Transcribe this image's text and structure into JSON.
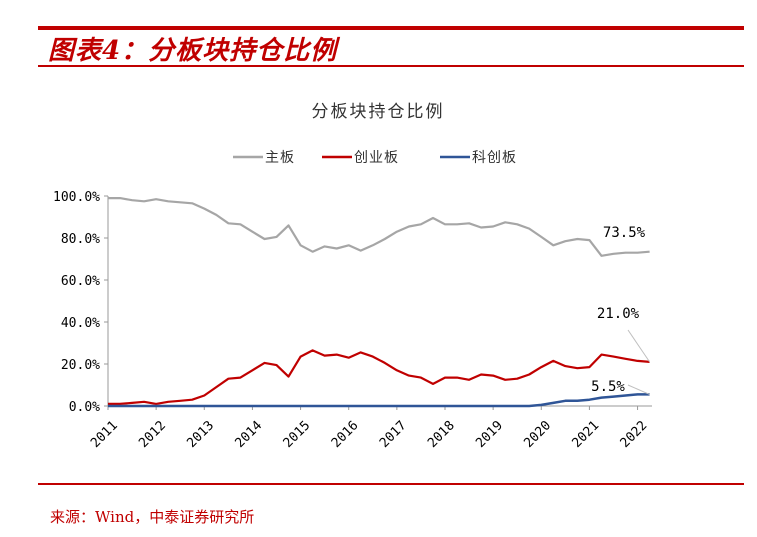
{
  "figure_title": "图表4：分板块持仓比例",
  "source": "来源：Wind，中泰证券研究所",
  "colors": {
    "accent": "#c00000",
    "main_board": "#a6a6a6",
    "chinext": "#c00000",
    "star": "#2f5597"
  },
  "chart_data": {
    "type": "line",
    "title": "分板块持仓比例",
    "xlabel": "",
    "ylabel": "",
    "ylim": [
      0,
      100
    ],
    "y_ticks": [
      "100.0%",
      "80.0%",
      "60.0%",
      "40.0%",
      "20.0%",
      "0.0%"
    ],
    "x_ticks": [
      "2011",
      "2012",
      "2013",
      "2014",
      "2015",
      "2016",
      "2017",
      "2018",
      "2019",
      "2020",
      "2021",
      "2022"
    ],
    "legend_position": "top-center",
    "x": [
      2011.0,
      2011.25,
      2011.5,
      2011.75,
      2012.0,
      2012.25,
      2012.5,
      2012.75,
      2013.0,
      2013.25,
      2013.5,
      2013.75,
      2014.0,
      2014.25,
      2014.5,
      2014.75,
      2015.0,
      2015.25,
      2015.5,
      2015.75,
      2016.0,
      2016.25,
      2016.5,
      2016.75,
      2017.0,
      2017.25,
      2017.5,
      2017.75,
      2018.0,
      2018.25,
      2018.5,
      2018.75,
      2019.0,
      2019.25,
      2019.5,
      2019.75,
      2020.0,
      2020.25,
      2020.5,
      2020.75,
      2021.0,
      2021.25,
      2021.5,
      2021.75,
      2022.0,
      2022.25
    ],
    "series": [
      {
        "name": "主板",
        "values": [
          99.0,
          99.0,
          98.0,
          97.5,
          98.5,
          97.5,
          97.0,
          96.5,
          94.0,
          91.0,
          87.0,
          86.5,
          83.0,
          79.5,
          80.5,
          86.0,
          76.5,
          73.5,
          76.0,
          75.0,
          76.5,
          74.0,
          76.5,
          79.5,
          83.0,
          85.5,
          86.5,
          89.5,
          86.5,
          86.5,
          87.0,
          85.0,
          85.5,
          87.5,
          86.5,
          84.5,
          80.5,
          76.5,
          78.5,
          79.5,
          79.0,
          71.5,
          72.5,
          73.0,
          73.0,
          73.5
        ]
      },
      {
        "name": "创业板",
        "values": [
          1.0,
          1.0,
          1.5,
          2.0,
          1.0,
          2.0,
          2.5,
          3.0,
          5.0,
          9.0,
          13.0,
          13.5,
          17.0,
          20.5,
          19.5,
          14.0,
          23.5,
          26.5,
          24.0,
          24.5,
          23.0,
          25.5,
          23.5,
          20.5,
          17.0,
          14.5,
          13.5,
          10.5,
          13.5,
          13.5,
          12.5,
          15.0,
          14.5,
          12.5,
          13.0,
          15.0,
          18.5,
          21.5,
          19.0,
          18.0,
          18.5,
          24.5,
          23.5,
          22.5,
          21.5,
          21.0
        ]
      },
      {
        "name": "科创板",
        "values": [
          0,
          0,
          0,
          0,
          0,
          0,
          0,
          0,
          0,
          0,
          0,
          0,
          0,
          0,
          0,
          0,
          0,
          0,
          0,
          0,
          0,
          0,
          0,
          0,
          0,
          0,
          0,
          0,
          0,
          0,
          0,
          0,
          0,
          0,
          0,
          0,
          0.5,
          1.5,
          2.5,
          2.5,
          3.0,
          4.0,
          4.5,
          5.0,
          5.5,
          5.5
        ]
      }
    ],
    "annotations": [
      "73.5%",
      "21.0%",
      "5.5%"
    ]
  }
}
